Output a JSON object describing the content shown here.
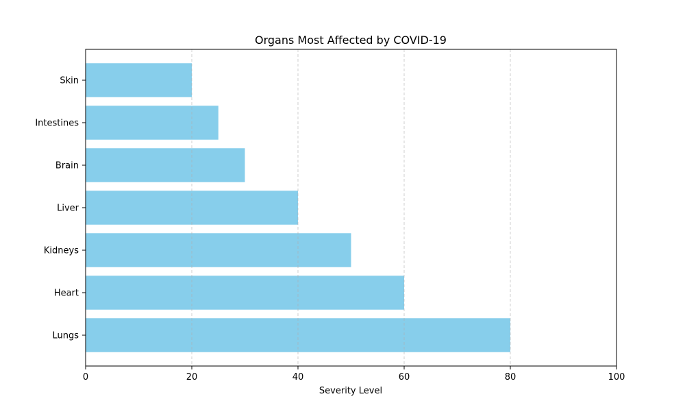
{
  "chart_data": {
    "type": "bar",
    "orientation": "horizontal",
    "title": "Organs Most Affected by COVID-19",
    "xlabel": "Severity Level",
    "ylabel": "",
    "categories": [
      "Lungs",
      "Heart",
      "Kidneys",
      "Liver",
      "Brain",
      "Intestines",
      "Skin"
    ],
    "values": [
      80,
      60,
      50,
      40,
      30,
      25,
      20
    ],
    "xlim": [
      0,
      100
    ],
    "xticks": [
      0,
      20,
      40,
      60,
      80,
      100
    ],
    "xtick_labels": [
      "0",
      "20",
      "40",
      "60",
      "80",
      "100"
    ],
    "grid": "x-dashed",
    "legend": "none",
    "bar_color": "#87ceeb",
    "grid_color": "#b0b0b0"
  }
}
